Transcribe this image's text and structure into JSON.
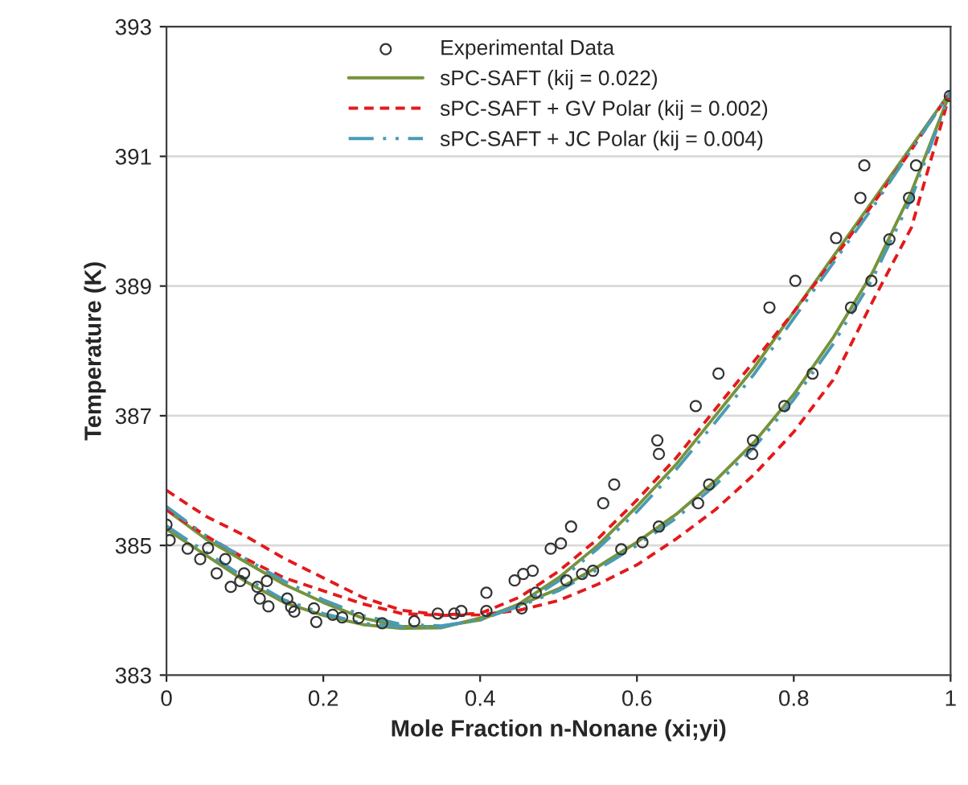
{
  "chart_data": {
    "type": "line",
    "xlabel": "Mole Fraction n-Nonane (xi;yi)",
    "ylabel": "Temperature (K)",
    "xlim": [
      0,
      1
    ],
    "ylim": [
      383,
      393
    ],
    "xticks": [
      0,
      0.2,
      0.4,
      0.6,
      0.8,
      1
    ],
    "yticks": [
      383,
      385,
      387,
      389,
      391,
      393
    ],
    "grid": "y",
    "legend": "top",
    "series": [
      {
        "name": "Experimental Data",
        "type": "scatter",
        "marker": "circle",
        "color": "#333333",
        "x": [
          0.0,
          0.004,
          0.027,
          0.043,
          0.053,
          0.064,
          0.075,
          0.082,
          0.094,
          0.099,
          0.116,
          0.119,
          0.128,
          0.13,
          0.154,
          0.159,
          0.163,
          0.188,
          0.191,
          0.212,
          0.224,
          0.245,
          0.275,
          0.316,
          0.346,
          0.367,
          0.376,
          0.408,
          0.408,
          0.444,
          0.455,
          0.467,
          0.471,
          0.453,
          0.49,
          0.503,
          0.516,
          0.557,
          0.571,
          0.626,
          0.628,
          0.675,
          0.704,
          0.769,
          0.802,
          0.854,
          0.885,
          0.89,
          0.999,
          0.51,
          0.53,
          0.544,
          0.58,
          0.607,
          0.628,
          0.678,
          0.692,
          0.747,
          0.748,
          0.788,
          0.824,
          0.873,
          0.899,
          0.922,
          0.947,
          0.956
        ],
        "values": [
          385.32,
          385.08,
          384.95,
          384.79,
          384.96,
          384.57,
          384.79,
          384.36,
          384.45,
          384.57,
          384.36,
          384.18,
          384.45,
          384.06,
          384.18,
          384.05,
          383.98,
          384.03,
          383.82,
          383.93,
          383.89,
          383.88,
          383.8,
          383.83,
          383.95,
          383.95,
          383.99,
          384.27,
          383.99,
          384.46,
          384.56,
          384.61,
          384.27,
          384.03,
          384.95,
          385.03,
          385.29,
          385.65,
          385.94,
          386.62,
          386.41,
          387.15,
          387.65,
          388.67,
          389.08,
          389.74,
          390.36,
          390.86,
          391.93,
          384.46,
          384.56,
          384.61,
          384.94,
          385.05,
          385.29,
          385.65,
          385.94,
          386.41,
          386.62,
          387.15,
          387.65,
          388.67,
          389.08,
          389.72,
          390.36,
          390.86
        ]
      },
      {
        "name": "sPC-SAFT (kij = 0.022)",
        "line_style": "solid",
        "color": "#77933c",
        "x": [
          0,
          0.05,
          0.1,
          0.15,
          0.2,
          0.25,
          0.3,
          0.35,
          0.4,
          0.45,
          0.5,
          0.55,
          0.6,
          0.65,
          0.7,
          0.75,
          0.8,
          0.85,
          0.9,
          0.95,
          1
        ],
        "values": [
          385.55,
          385.1,
          384.75,
          384.4,
          384.12,
          383.88,
          383.75,
          383.75,
          383.85,
          384.1,
          384.5,
          385.0,
          385.6,
          386.25,
          387.0,
          387.75,
          388.6,
          389.45,
          390.3,
          391.15,
          392.0
        ]
      },
      {
        "line_style": "solid",
        "color": "#77933c",
        "x": [
          0,
          0.05,
          0.1,
          0.15,
          0.2,
          0.25,
          0.3,
          0.35,
          0.4,
          0.45,
          0.5,
          0.55,
          0.6,
          0.65,
          0.7,
          0.75,
          0.8,
          0.85,
          0.9,
          0.95,
          1
        ],
        "values": [
          385.25,
          384.85,
          384.45,
          384.12,
          383.92,
          383.78,
          383.72,
          383.73,
          383.88,
          384.08,
          384.33,
          384.67,
          385.05,
          385.48,
          386.0,
          386.6,
          387.33,
          388.2,
          389.2,
          390.45,
          392.0
        ]
      },
      {
        "name": "sPC-SAFT + GV Polar (kij = 0.002)",
        "line_style": "dashed",
        "color": "#e31a1c",
        "x": [
          0,
          0.05,
          0.1,
          0.15,
          0.2,
          0.25,
          0.3,
          0.35,
          0.4,
          0.45,
          0.5,
          0.55,
          0.6,
          0.65,
          0.7,
          0.75,
          0.8,
          0.85,
          0.9,
          0.95,
          1
        ],
        "values": [
          385.85,
          385.45,
          385.15,
          384.8,
          384.5,
          384.2,
          384.0,
          383.93,
          383.95,
          384.2,
          384.6,
          385.1,
          385.7,
          386.35,
          387.1,
          387.85,
          388.6,
          389.4,
          390.25,
          391.1,
          392.0
        ]
      },
      {
        "line_style": "dashed",
        "color": "#e31a1c",
        "x": [
          0,
          0.05,
          0.1,
          0.15,
          0.2,
          0.25,
          0.3,
          0.35,
          0.4,
          0.45,
          0.5,
          0.55,
          0.6,
          0.65,
          0.7,
          0.75,
          0.8,
          0.85,
          0.9,
          0.95,
          1
        ],
        "values": [
          385.55,
          385.15,
          384.8,
          384.5,
          384.3,
          384.1,
          383.95,
          383.92,
          383.93,
          384.0,
          384.15,
          384.4,
          384.7,
          385.1,
          385.55,
          386.1,
          386.75,
          387.55,
          388.75,
          389.9,
          392.0
        ]
      },
      {
        "name": "sPC-SAFT + JC Polar (kij = 0.004)",
        "line_style": "dashdot",
        "color": "#4a9bb5",
        "x": [
          0,
          0.05,
          0.1,
          0.15,
          0.2,
          0.25,
          0.3,
          0.35,
          0.4,
          0.45,
          0.5,
          0.55,
          0.6,
          0.65,
          0.7,
          0.75,
          0.8,
          0.85,
          0.9,
          0.95,
          1
        ],
        "values": [
          385.6,
          385.15,
          384.8,
          384.45,
          384.16,
          383.92,
          383.78,
          383.76,
          383.85,
          384.07,
          384.45,
          384.95,
          385.52,
          386.17,
          386.9,
          387.65,
          388.5,
          389.35,
          390.2,
          391.1,
          392.0
        ]
      },
      {
        "line_style": "dashdot",
        "color": "#4a9bb5",
        "x": [
          0,
          0.05,
          0.1,
          0.15,
          0.2,
          0.25,
          0.3,
          0.35,
          0.4,
          0.45,
          0.5,
          0.55,
          0.6,
          0.65,
          0.7,
          0.75,
          0.8,
          0.85,
          0.9,
          0.95,
          1
        ],
        "values": [
          385.3,
          384.9,
          384.5,
          384.16,
          383.95,
          383.8,
          383.74,
          383.74,
          383.87,
          384.06,
          384.3,
          384.63,
          385.0,
          385.42,
          385.93,
          386.52,
          387.25,
          388.1,
          389.1,
          390.35,
          392.0
        ]
      }
    ]
  }
}
